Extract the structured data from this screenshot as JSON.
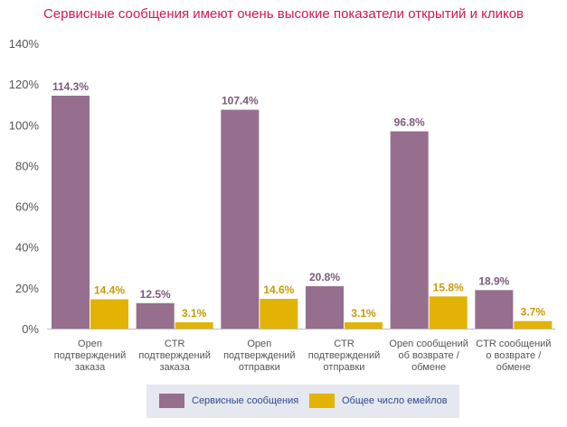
{
  "chart_data": {
    "type": "bar",
    "title": "Сервисные сообщения имеют очень высокие показатели открытий и кликов",
    "categories": [
      [
        "Open",
        "подтверждений",
        "заказа"
      ],
      [
        "CTR",
        "подтверждений",
        "заказа"
      ],
      [
        "Open",
        "подтверждений",
        "отправки"
      ],
      [
        "CTR",
        "подтверждений",
        "отправки"
      ],
      [
        "Open сообщений",
        "об возврате /",
        "обмене"
      ],
      [
        "CTR сообщений",
        "о возврате /",
        "обмене"
      ]
    ],
    "series": [
      {
        "name": "Сервисные сообщения",
        "color": "#966e8e",
        "values": [
          114.3,
          12.5,
          107.4,
          20.8,
          96.8,
          18.9
        ],
        "labels": [
          "114.3%",
          "12.5%",
          "107.4%",
          "20.8%",
          "96.8%",
          "18.9%"
        ]
      },
      {
        "name": "Общее число емейлов",
        "color": "#e2b304",
        "values": [
          14.4,
          3.1,
          14.6,
          3.1,
          15.8,
          3.7
        ],
        "labels": [
          "14.4%",
          "3.1%",
          "14.6%",
          "3.1%",
          "15.8%",
          "3.7%"
        ]
      }
    ],
    "yticks": [
      "0%",
      "20%",
      "40%",
      "60%",
      "80%",
      "100%",
      "120%",
      "140%"
    ],
    "ylim": [
      0,
      140
    ],
    "grid": false,
    "legend_position": "bottom",
    "colors": {
      "title": "#d4145a",
      "label_primary": "#7b5a78",
      "label_secondary": "#c99a00",
      "axis_text": "#555555",
      "legend_text": "#2e4a8c"
    }
  }
}
